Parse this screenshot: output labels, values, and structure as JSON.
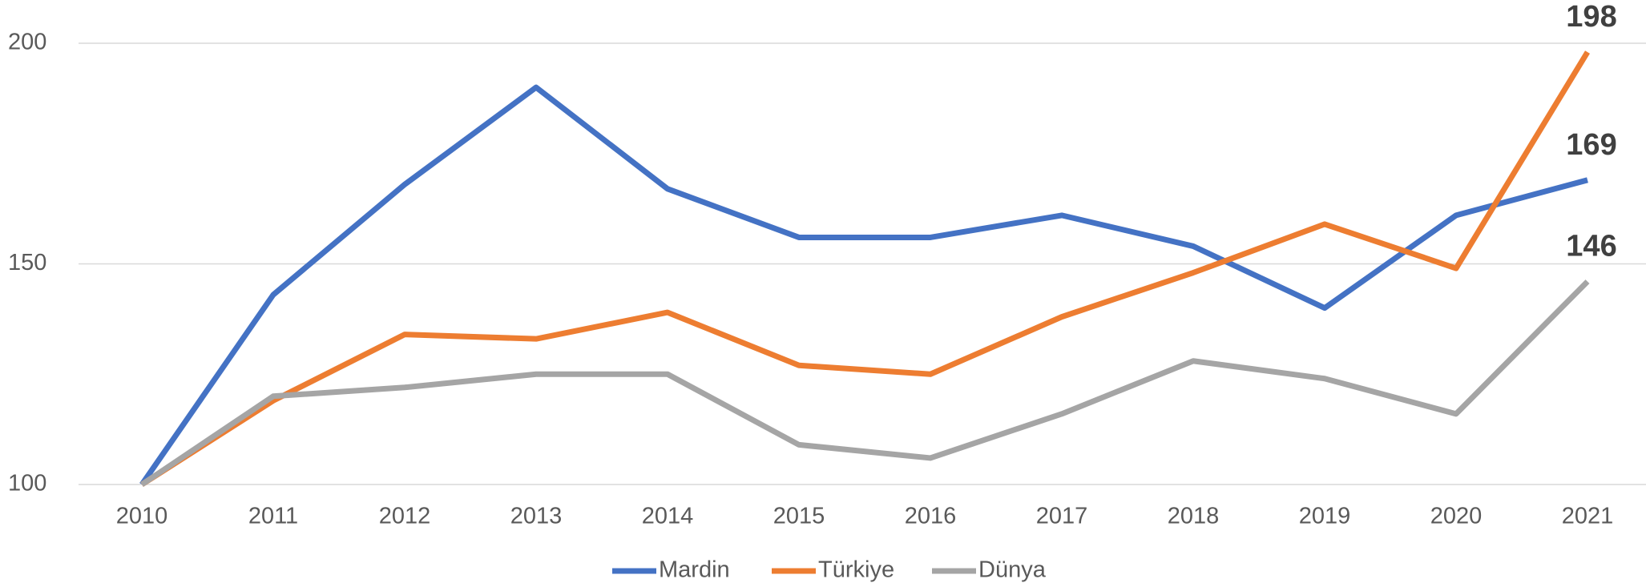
{
  "chart_data": {
    "type": "line",
    "categories": [
      "2010",
      "2011",
      "2012",
      "2013",
      "2014",
      "2015",
      "2016",
      "2017",
      "2018",
      "2019",
      "2020",
      "2021"
    ],
    "series": [
      {
        "name": "Mardin",
        "color": "#4472c4",
        "values": [
          100,
          143,
          168,
          190,
          167,
          156,
          156,
          161,
          154,
          140,
          161,
          169
        ]
      },
      {
        "name": "Türkiye",
        "color": "#ed7d31",
        "values": [
          100,
          119,
          134,
          133,
          139,
          127,
          125,
          138,
          148,
          159,
          149,
          198
        ]
      },
      {
        "name": "Dünya",
        "color": "#a5a5a5",
        "values": [
          100,
          120,
          122,
          125,
          125,
          109,
          106,
          116,
          128,
          124,
          116,
          146
        ]
      }
    ],
    "ylim": [
      100,
      200
    ],
    "yticks": [
      100,
      150,
      200
    ],
    "grid": true,
    "legend": "bottom"
  }
}
